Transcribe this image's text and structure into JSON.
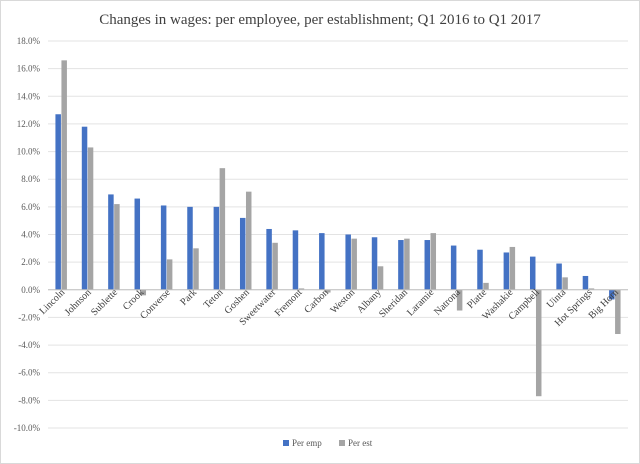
{
  "chart_data": {
    "type": "bar",
    "title": "Changes in wages: per employee, per establishment; Q1 2016 to Q1 2017",
    "xlabel": "",
    "ylabel": "",
    "ylim": [
      -10,
      18
    ],
    "ytick_step": 2,
    "ytick_labels": [
      "-10.0%",
      "-8.0%",
      "-6.0%",
      "-4.0%",
      "-2.0%",
      "0.0%",
      "2.0%",
      "4.0%",
      "6.0%",
      "8.0%",
      "10.0%",
      "12.0%",
      "14.0%",
      "16.0%",
      "18.0%"
    ],
    "grid": true,
    "legend_position": "bottom",
    "categories": [
      "Lincoln",
      "Johnson",
      "Sublette",
      "Crook",
      "Converse",
      "Park",
      "Teton",
      "Goshen",
      "Sweetwater",
      "Fremont",
      "Carbon",
      "Weston",
      "Albany",
      "Sheridan",
      "Laramie",
      "Natrona",
      "Platte",
      "Washakie",
      "Campbell",
      "Uinta",
      "Hot Springs",
      "Big Horn"
    ],
    "series": [
      {
        "name": "Per emp",
        "color": "#4472c4",
        "values": [
          12.7,
          11.8,
          6.9,
          6.6,
          6.1,
          6.0,
          6.0,
          5.2,
          4.4,
          4.3,
          4.1,
          4.0,
          3.8,
          3.6,
          3.6,
          3.2,
          2.9,
          2.7,
          2.4,
          1.9,
          1.0,
          -0.7
        ]
      },
      {
        "name": "Per est",
        "color": "#a5a5a5",
        "values": [
          16.6,
          10.3,
          6.2,
          -0.4,
          2.2,
          3.0,
          8.8,
          7.1,
          3.4,
          0.1,
          -0.2,
          3.7,
          1.7,
          3.7,
          4.1,
          -1.5,
          0.5,
          3.1,
          -7.7,
          0.9,
          0.1,
          -3.2
        ]
      }
    ]
  }
}
